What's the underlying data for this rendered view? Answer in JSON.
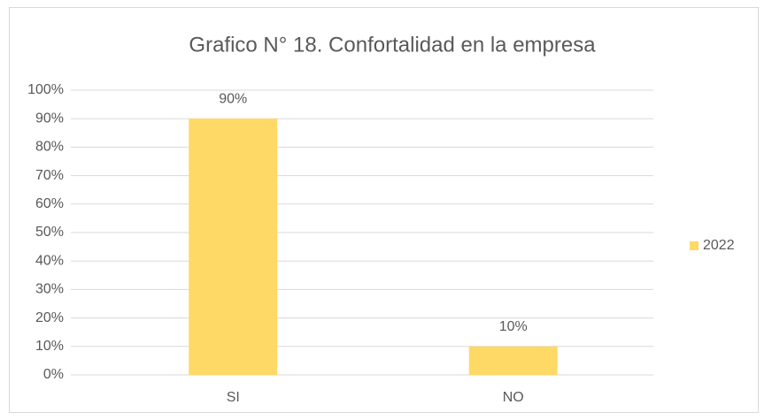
{
  "chart_data": {
    "type": "bar",
    "title": "Grafico N° 18. Confortalidad en la empresa",
    "categories": [
      "SI",
      "NO"
    ],
    "series": [
      {
        "name": "2022",
        "color": "#ffd966",
        "values": [
          90,
          10
        ],
        "value_labels": [
          "90%",
          "10%"
        ]
      }
    ],
    "ylim": [
      0,
      100
    ],
    "yticks": [
      {
        "value": 0,
        "label": "0%"
      },
      {
        "value": 10,
        "label": "10%"
      },
      {
        "value": 20,
        "label": "20%"
      },
      {
        "value": 30,
        "label": "30%"
      },
      {
        "value": 40,
        "label": "40%"
      },
      {
        "value": 50,
        "label": "50%"
      },
      {
        "value": 60,
        "label": "60%"
      },
      {
        "value": 70,
        "label": "70%"
      },
      {
        "value": 80,
        "label": "80%"
      },
      {
        "value": 90,
        "label": "90%"
      },
      {
        "value": 100,
        "label": "100%"
      }
    ],
    "grid": true,
    "legend": "right"
  }
}
